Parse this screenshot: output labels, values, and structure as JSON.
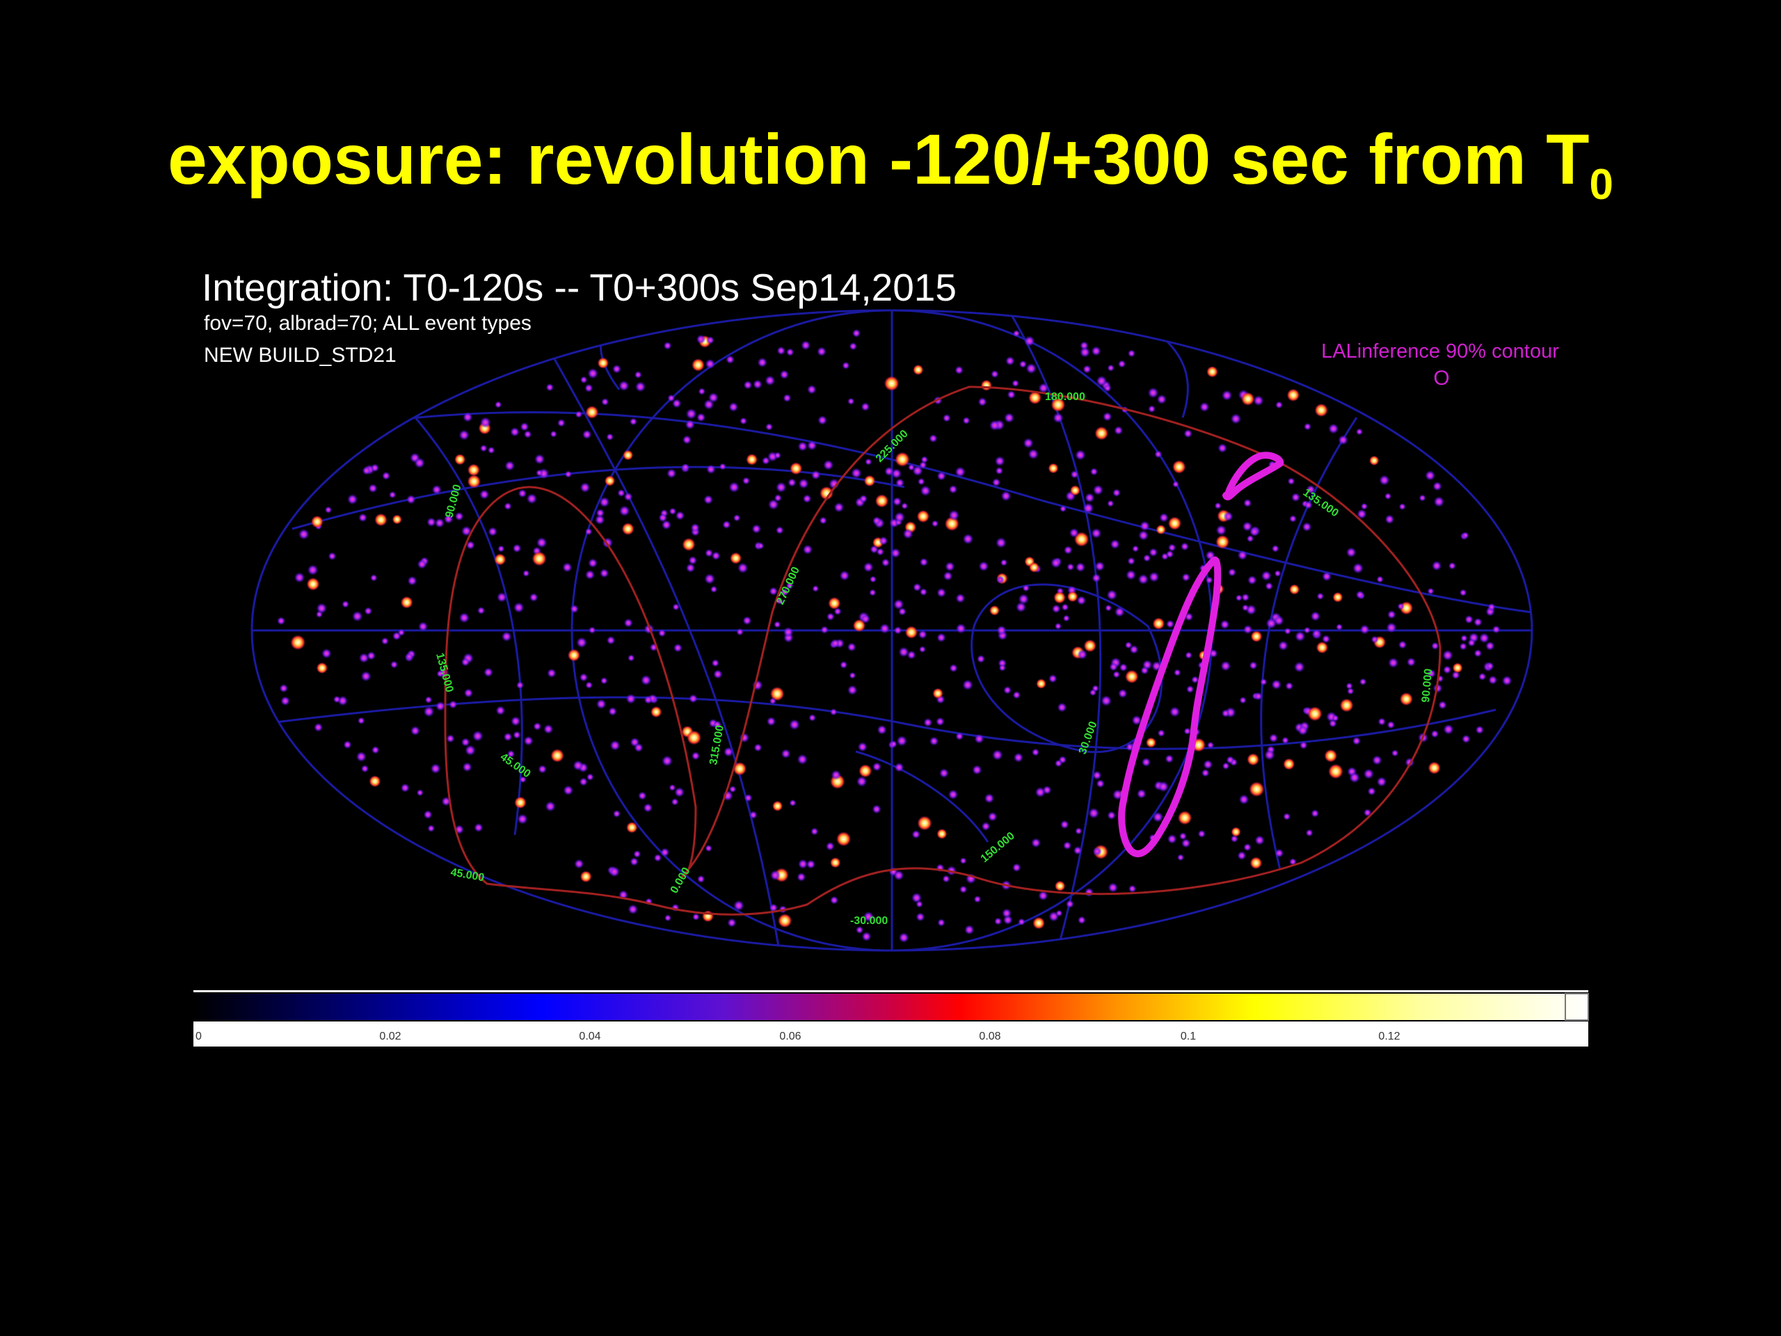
{
  "slide": {
    "title_main": "exposure: revolution -120/+300 sec from T",
    "title_subscript": "0"
  },
  "plot": {
    "title": "Integration: T0-120s -- T0+300s Sep14,2015",
    "subtitle_1": "fov=70, albrad=70; ALL event types",
    "subtitle_2": "NEW BUILD_STD21",
    "legend_label": "LALinference 90% contour",
    "legend_marker": "O",
    "contour_color": "#e020e0",
    "background_color": "#000000",
    "grid_color": "#1a1aa0",
    "track_color": "#a02020",
    "track_label_color": "#33dd33",
    "track_labels": [
      "180.000",
      "225.000",
      "135.000",
      "90.000",
      "270.000",
      "135.000",
      "90.000",
      "315.000",
      "45.000",
      "0.000",
      "-30.000",
      "150.000",
      "30.000",
      "45.000"
    ]
  },
  "colorbar": {
    "tick_labels": [
      "0",
      "0.02",
      "0.04",
      "0.06",
      "0.08",
      "0.1",
      "0.12"
    ],
    "colors": [
      "#000000",
      "#0000ff",
      "#ff0000",
      "#ffff00",
      "#ffffff"
    ]
  }
}
